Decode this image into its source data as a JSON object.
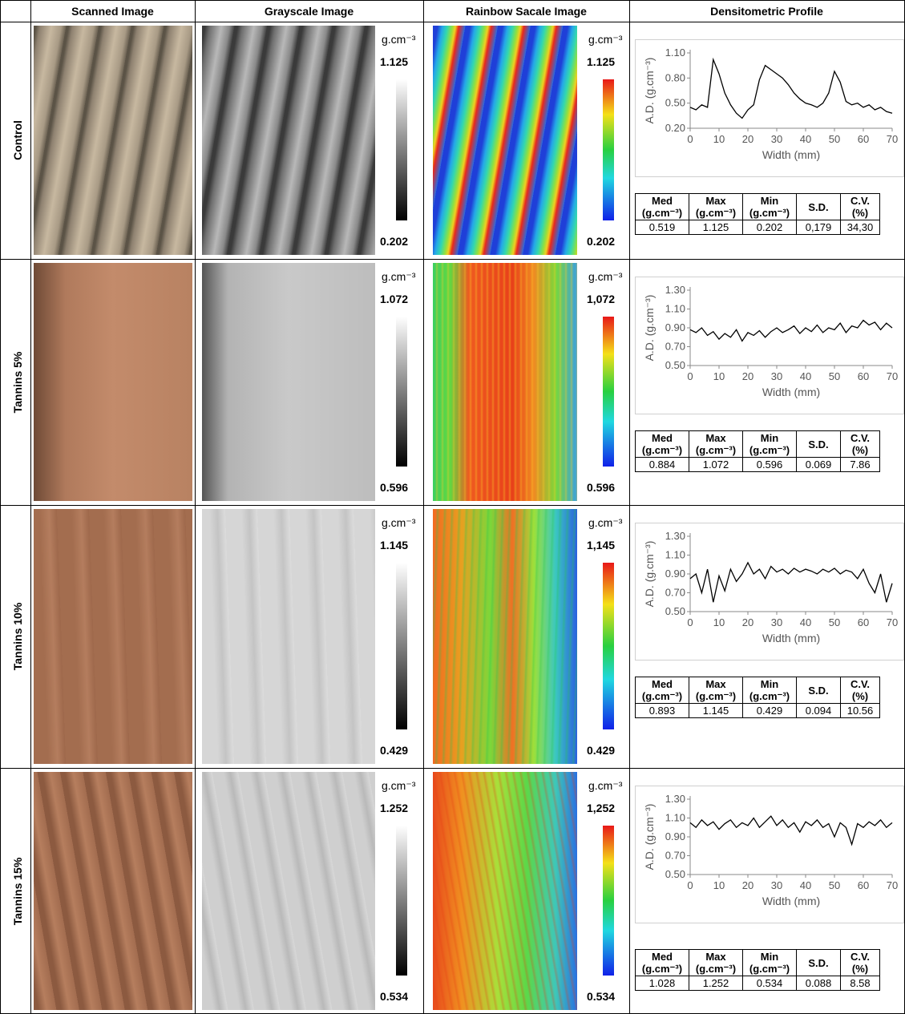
{
  "header": [
    "Scanned Image",
    "Grayscale Image",
    "Rainbow Sacale Image",
    "Densitometric Profile"
  ],
  "scale_unit": "g.cm⁻³",
  "stats_headers": [
    [
      "Med",
      "(g.cm⁻³)"
    ],
    [
      "Max",
      "(g.cm⁻³)"
    ],
    [
      "Min",
      "(g.cm⁻³)"
    ],
    [
      "S.D."
    ],
    [
      "C.V.",
      "(%)"
    ]
  ],
  "rows": [
    {
      "label": "Control",
      "gray_max": "1.125",
      "gray_min": "0.202",
      "rainbow_max": "1.125",
      "rainbow_min": "0.202",
      "stats": [
        "0.519",
        "1.125",
        "0.202",
        "0,179",
        "34,30"
      ],
      "profile": {
        "type": "line",
        "xlabel": "Width (mm)",
        "ylabel": "A.D. (g.cm⁻³)",
        "color": "#000000",
        "x": [
          0,
          2,
          4,
          6,
          8,
          10,
          12,
          14,
          16,
          18,
          20,
          22,
          24,
          26,
          28,
          30,
          32,
          34,
          36,
          38,
          40,
          42,
          44,
          46,
          48,
          50,
          52,
          54,
          56,
          58,
          60,
          62,
          64,
          66,
          68,
          70
        ],
        "values": [
          0.45,
          0.42,
          0.48,
          0.45,
          1.02,
          0.85,
          0.62,
          0.48,
          0.38,
          0.32,
          0.42,
          0.48,
          0.78,
          0.95,
          0.9,
          0.85,
          0.8,
          0.72,
          0.62,
          0.55,
          0.5,
          0.48,
          0.45,
          0.5,
          0.62,
          0.88,
          0.75,
          0.52,
          0.48,
          0.5,
          0.45,
          0.48,
          0.42,
          0.45,
          0.4,
          0.38
        ],
        "xlim": [
          0,
          70
        ],
        "xticks": [
          0,
          10,
          20,
          30,
          40,
          50,
          60,
          70
        ],
        "ylim": [
          0.2,
          1.1
        ],
        "yticks": [
          {
            "value": 0.2,
            "label": "0.20"
          },
          {
            "value": 0.5,
            "label": "0.50"
          },
          {
            "value": 0.8,
            "label": "0.80"
          },
          {
            "value": 1.1,
            "label": "1.10"
          }
        ]
      }
    },
    {
      "label": "Tannins 5%",
      "gray_max": "1.072",
      "gray_min": "0.596",
      "rainbow_max": "1,072",
      "rainbow_min": "0.596",
      "stats": [
        "0.884",
        "1.072",
        "0.596",
        "0.069",
        "7.86"
      ],
      "profile": {
        "type": "line",
        "xlabel": "Width (mm)",
        "ylabel": "A.D. (g.cm⁻³)",
        "color": "#000000",
        "x": [
          0,
          2,
          4,
          6,
          8,
          10,
          12,
          14,
          16,
          18,
          20,
          22,
          24,
          26,
          28,
          30,
          32,
          34,
          36,
          38,
          40,
          42,
          44,
          46,
          48,
          50,
          52,
          54,
          56,
          58,
          60,
          62,
          64,
          66,
          68,
          70
        ],
        "values": [
          0.88,
          0.85,
          0.9,
          0.82,
          0.86,
          0.78,
          0.84,
          0.8,
          0.88,
          0.76,
          0.85,
          0.82,
          0.87,
          0.8,
          0.86,
          0.9,
          0.85,
          0.88,
          0.92,
          0.84,
          0.9,
          0.86,
          0.93,
          0.85,
          0.9,
          0.88,
          0.95,
          0.85,
          0.92,
          0.9,
          0.98,
          0.93,
          0.96,
          0.88,
          0.95,
          0.9
        ],
        "xlim": [
          0,
          70
        ],
        "xticks": [
          0,
          10,
          20,
          30,
          40,
          50,
          60,
          70
        ],
        "ylim": [
          0.5,
          1.3
        ],
        "yticks": [
          {
            "value": 0.5,
            "label": "0.50"
          },
          {
            "value": 0.7,
            "label": "0.70"
          },
          {
            "value": 0.9,
            "label": "0.90"
          },
          {
            "value": 1.1,
            "label": "1.10"
          },
          {
            "value": 1.3,
            "label": "1.30"
          }
        ]
      }
    },
    {
      "label": "Tannins 10%",
      "gray_max": "1.145",
      "gray_min": "0.429",
      "rainbow_max": "1,145",
      "rainbow_min": "0.429",
      "stats": [
        "0.893",
        "1.145",
        "0.429",
        "0.094",
        "10.56"
      ],
      "profile": {
        "type": "line",
        "xlabel": "Width (mm)",
        "ylabel": "A.D. (g.cm⁻³)",
        "color": "#000000",
        "x": [
          0,
          2,
          4,
          6,
          8,
          10,
          12,
          14,
          16,
          18,
          20,
          22,
          24,
          26,
          28,
          30,
          32,
          34,
          36,
          38,
          40,
          42,
          44,
          46,
          48,
          50,
          52,
          54,
          56,
          58,
          60,
          62,
          64,
          66,
          68,
          70
        ],
        "values": [
          0.85,
          0.9,
          0.7,
          0.95,
          0.6,
          0.88,
          0.72,
          0.95,
          0.82,
          0.9,
          1.02,
          0.9,
          0.95,
          0.85,
          0.98,
          0.92,
          0.95,
          0.9,
          0.96,
          0.92,
          0.95,
          0.93,
          0.9,
          0.95,
          0.92,
          0.96,
          0.9,
          0.94,
          0.92,
          0.85,
          0.95,
          0.8,
          0.7,
          0.9,
          0.6,
          0.8
        ],
        "xlim": [
          0,
          70
        ],
        "xticks": [
          0,
          10,
          20,
          30,
          40,
          50,
          60,
          70
        ],
        "ylim": [
          0.5,
          1.3
        ],
        "yticks": [
          {
            "value": 0.5,
            "label": "0.50"
          },
          {
            "value": 0.7,
            "label": "0.70"
          },
          {
            "value": 0.9,
            "label": "0.90"
          },
          {
            "value": 1.1,
            "label": "1.10"
          },
          {
            "value": 1.3,
            "label": "1.30"
          }
        ]
      }
    },
    {
      "label": "Tannins 15%",
      "gray_max": "1.252",
      "gray_min": "0.534",
      "rainbow_max": "1,252",
      "rainbow_min": "0.534",
      "stats": [
        "1.028",
        "1.252",
        "0.534",
        "0.088",
        "8.58"
      ],
      "profile": {
        "type": "line",
        "xlabel": "Width (mm)",
        "ylabel": "A.D. (g.cm⁻³)",
        "color": "#000000",
        "x": [
          0,
          2,
          4,
          6,
          8,
          10,
          12,
          14,
          16,
          18,
          20,
          22,
          24,
          26,
          28,
          30,
          32,
          34,
          36,
          38,
          40,
          42,
          44,
          46,
          48,
          50,
          52,
          54,
          56,
          58,
          60,
          62,
          64,
          66,
          68,
          70
        ],
        "values": [
          1.05,
          1.0,
          1.08,
          1.02,
          1.06,
          0.98,
          1.04,
          1.08,
          1.0,
          1.05,
          1.02,
          1.1,
          1.0,
          1.06,
          1.12,
          1.02,
          1.08,
          1.0,
          1.05,
          0.95,
          1.06,
          1.02,
          1.08,
          1.0,
          1.04,
          0.9,
          1.05,
          1.0,
          0.82,
          1.04,
          1.0,
          1.06,
          1.02,
          1.08,
          1.0,
          1.05
        ],
        "xlim": [
          0,
          70
        ],
        "xticks": [
          0,
          10,
          20,
          30,
          40,
          50,
          60,
          70
        ],
        "ylim": [
          0.5,
          1.3
        ],
        "yticks": [
          {
            "value": 0.5,
            "label": "0.50"
          },
          {
            "value": 0.7,
            "label": "0.70"
          },
          {
            "value": 0.9,
            "label": "0.90"
          },
          {
            "value": 1.1,
            "label": "1.10"
          },
          {
            "value": 1.3,
            "label": "1.30"
          }
        ]
      }
    }
  ]
}
